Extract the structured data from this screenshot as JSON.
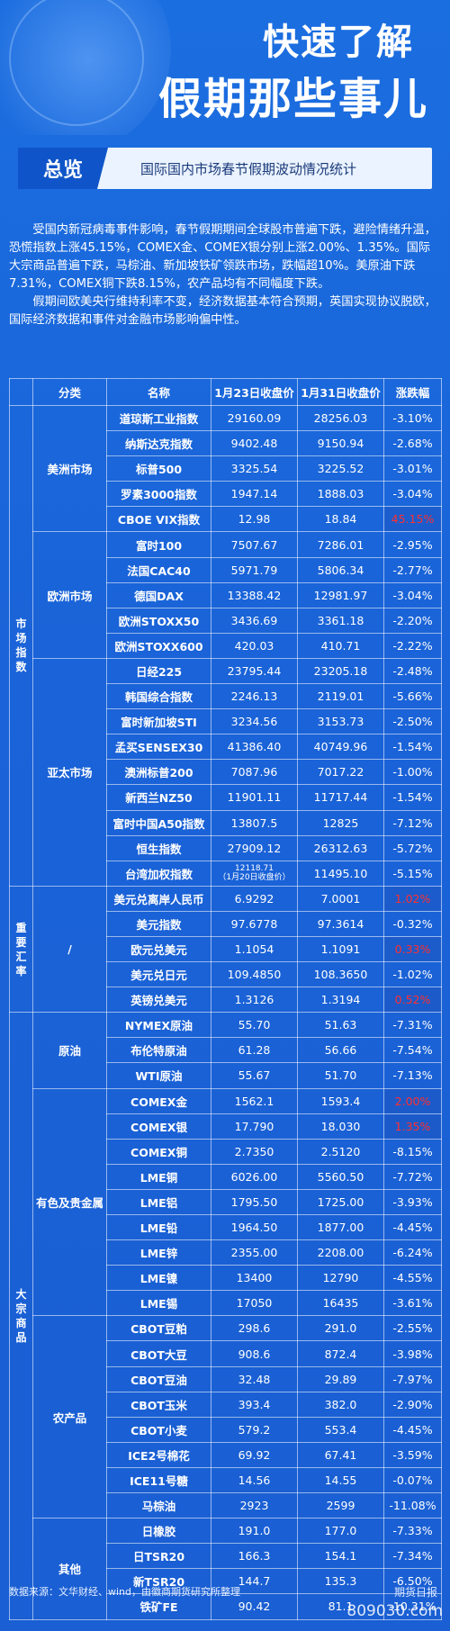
{
  "header": {
    "title_line1": "快速了解",
    "title_line2": "假期那些事儿"
  },
  "overview": {
    "tag": "总览",
    "subtitle": "国际国内市场春节假期波动情况统计"
  },
  "intro": {
    "para1": "受国内新冠病毒事件影响，春节假期期间全球股市普遍下跌，避险情绪升温，恐慌指数上涨45.15%，COMEX金、COMEX银分别上涨2.00%、1.35%。国际大宗商品普遍下跌，马棕油、新加坡铁矿领跌市场，跌幅超10%。美原油下跌7.31%，COMEX铜下跌8.15%，农产品均有不同幅度下跌。",
    "para2": "假期间欧美央行维持利率不变，经济数据基本符合预期，英国实现协议脱欧，国际经济数据和事件对金融市场影响偏中性。"
  },
  "table": {
    "headers": [
      "分类",
      "名称",
      "1月23日收盘价",
      "1月31日收盘价",
      "涨跌幅"
    ],
    "groups": {
      "market_index": "市场指数",
      "fx": "重要汇率",
      "commodity": "大宗商品"
    },
    "subgroups": {
      "americas": "美洲市场",
      "europe": "欧洲市场",
      "asia": "亚太市场",
      "fx_slash": "/",
      "oil": "原油",
      "metals": "有色及贵金属",
      "agri": "农产品",
      "other": "其他"
    },
    "rows": [
      {
        "name": "道琼斯工业指数",
        "p1": "29160.09",
        "p2": "28256.03",
        "chg": "-3.10%"
      },
      {
        "name": "纳斯达克指数",
        "p1": "9402.48",
        "p2": "9150.94",
        "chg": "-2.68%"
      },
      {
        "name": "标普500",
        "p1": "3325.54",
        "p2": "3225.52",
        "chg": "-3.01%"
      },
      {
        "name": "罗素3000指数",
        "p1": "1947.14",
        "p2": "1888.03",
        "chg": "-3.04%"
      },
      {
        "name": "CBOE VIX指数",
        "p1": "12.98",
        "p2": "18.84",
        "chg": "45.15%"
      },
      {
        "name": "富时100",
        "p1": "7507.67",
        "p2": "7286.01",
        "chg": "-2.95%"
      },
      {
        "name": "法国CAC40",
        "p1": "5971.79",
        "p2": "5806.34",
        "chg": "-2.77%"
      },
      {
        "name": "德国DAX",
        "p1": "13388.42",
        "p2": "12981.97",
        "chg": "-3.04%"
      },
      {
        "name": "欧洲STOXX50",
        "p1": "3436.69",
        "p2": "3361.18",
        "chg": "-2.20%"
      },
      {
        "name": "欧洲STOXX600",
        "p1": "420.03",
        "p2": "410.71",
        "chg": "-2.22%"
      },
      {
        "name": "日经225",
        "p1": "23795.44",
        "p2": "23205.18",
        "chg": "-2.48%"
      },
      {
        "name": "韩国综合指数",
        "p1": "2246.13",
        "p2": "2119.01",
        "chg": "-5.66%"
      },
      {
        "name": "富时新加坡STI",
        "p1": "3234.56",
        "p2": "3153.73",
        "chg": "-2.50%"
      },
      {
        "name": "孟买SENSEX30",
        "p1": "41386.40",
        "p2": "40749.96",
        "chg": "-1.54%"
      },
      {
        "name": "澳洲标普200",
        "p1": "7087.96",
        "p2": "7017.22",
        "chg": "-1.00%"
      },
      {
        "name": "新西兰NZ50",
        "p1": "11901.11",
        "p2": "11717.44",
        "chg": "-1.54%"
      },
      {
        "name": "富时中国A50指数",
        "p1": "13807.5",
        "p2": "12825",
        "chg": "-7.12%"
      },
      {
        "name": "恒生指数",
        "p1": "27909.12",
        "p2": "26312.63",
        "chg": "-5.72%"
      },
      {
        "name": "台湾加权指数",
        "p1": "12118.71",
        "p1_note": "（1月20日收盘价）",
        "p2": "11495.10",
        "chg": "-5.15%"
      },
      {
        "name": "美元兑离岸人民币",
        "p1": "6.9292",
        "p2": "7.0001",
        "chg": "1.02%"
      },
      {
        "name": "美元指数",
        "p1": "97.6778",
        "p2": "97.3614",
        "chg": "-0.32%"
      },
      {
        "name": "欧元兑美元",
        "p1": "1.1054",
        "p2": "1.1091",
        "chg": "0.33%"
      },
      {
        "name": "美元兑日元",
        "p1": "109.4850",
        "p2": "108.3650",
        "chg": "-1.02%"
      },
      {
        "name": "英镑兑美元",
        "p1": "1.3126",
        "p2": "1.3194",
        "chg": "0.52%"
      },
      {
        "name": "NYMEX原油",
        "p1": "55.70",
        "p2": "51.63",
        "chg": "-7.31%"
      },
      {
        "name": "布伦特原油",
        "p1": "61.28",
        "p2": "56.66",
        "chg": "-7.54%"
      },
      {
        "name": "WTI原油",
        "p1": "55.67",
        "p2": "51.70",
        "chg": "-7.13%"
      },
      {
        "name": "COMEX金",
        "p1": "1562.1",
        "p2": "1593.4",
        "chg": "2.00%"
      },
      {
        "name": "COMEX银",
        "p1": "17.790",
        "p2": "18.030",
        "chg": "1.35%"
      },
      {
        "name": "COMEX铜",
        "p1": "2.7350",
        "p2": "2.5120",
        "chg": "-8.15%"
      },
      {
        "name": "LME铜",
        "p1": "6026.00",
        "p2": "5560.50",
        "chg": "-7.72%"
      },
      {
        "name": "LME铝",
        "p1": "1795.50",
        "p2": "1725.00",
        "chg": "-3.93%"
      },
      {
        "name": "LME铅",
        "p1": "1964.50",
        "p2": "1877.00",
        "chg": "-4.45%"
      },
      {
        "name": "LME锌",
        "p1": "2355.00",
        "p2": "2208.00",
        "chg": "-6.24%"
      },
      {
        "name": "LME镍",
        "p1": "13400",
        "p2": "12790",
        "chg": "-4.55%"
      },
      {
        "name": "LME锡",
        "p1": "17050",
        "p2": "16435",
        "chg": "-3.61%"
      },
      {
        "name": "CBOT豆粕",
        "p1": "298.6",
        "p2": "291.0",
        "chg": "-2.55%"
      },
      {
        "name": "CBOT大豆",
        "p1": "908.6",
        "p2": "872.4",
        "chg": "-3.98%"
      },
      {
        "name": "CBOT豆油",
        "p1": "32.48",
        "p2": "29.89",
        "chg": "-7.97%"
      },
      {
        "name": "CBOT玉米",
        "p1": "393.4",
        "p2": "382.0",
        "chg": "-2.90%"
      },
      {
        "name": "CBOT小麦",
        "p1": "579.2",
        "p2": "553.4",
        "chg": "-4.45%"
      },
      {
        "name": "ICE2号棉花",
        "p1": "69.92",
        "p2": "67.41",
        "chg": "-3.59%"
      },
      {
        "name": "ICE11号糖",
        "p1": "14.56",
        "p2": "14.55",
        "chg": "-0.07%"
      },
      {
        "name": "马棕油",
        "p1": "2923",
        "p2": "2599",
        "chg": "-11.08%"
      },
      {
        "name": "日橡胶",
        "p1": "191.0",
        "p2": "177.0",
        "chg": "-7.33%"
      },
      {
        "name": "日TSR20",
        "p1": "166.3",
        "p2": "154.1",
        "chg": "-7.34%"
      },
      {
        "name": "新TSR20",
        "p1": "144.7",
        "p2": "135.3",
        "chg": "-6.50%"
      },
      {
        "name": "铁矿FE",
        "p1": "90.42",
        "p2": "81.1",
        "chg": "-10.31%"
      }
    ]
  },
  "footer": {
    "source": "数据来源：文华财经、wind，由徽商期货研究所整理",
    "watermark_brand": "期货日报",
    "watermark_site": "809030.com"
  },
  "colors": {
    "background": "#1a63d8",
    "up": "#ff2f2f",
    "accent": "#0f55c9"
  }
}
